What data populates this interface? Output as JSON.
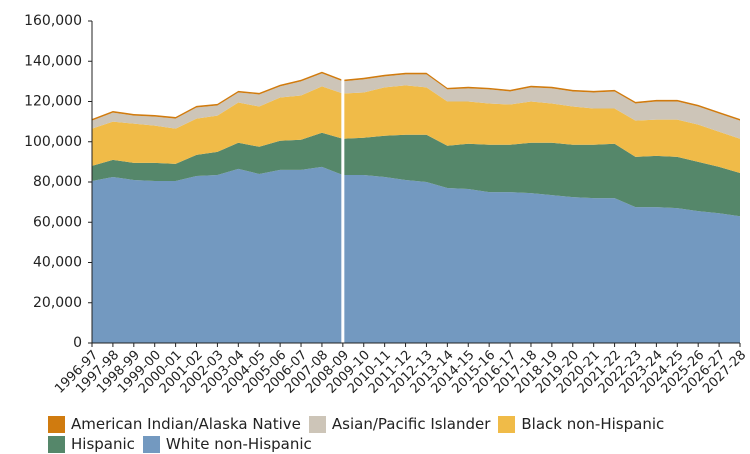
{
  "chart_data": {
    "type": "stacked_area",
    "categories": [
      "1996-97",
      "1997-98",
      "1998-99",
      "1999-00",
      "2000-01",
      "2001-02",
      "2002-03",
      "2003-04",
      "2004-05",
      "2005-06",
      "2006-07",
      "2007-08",
      "2008-09",
      "2009-10",
      "2010-11",
      "2011-12",
      "2012-13",
      "2013-14",
      "2014-15",
      "2015-16",
      "2016-17",
      "2017-18",
      "2018-19",
      "2019-20",
      "2020-21",
      "2021-22",
      "2022-23",
      "2023-24",
      "2024-25",
      "2025-26",
      "2026-27",
      "2027-28"
    ],
    "series": [
      {
        "name": "American Indian/Alaska Native",
        "color": "#d07b0f",
        "values": [
          800,
          800,
          800,
          800,
          800,
          800,
          800,
          800,
          800,
          800,
          800,
          800,
          800,
          800,
          800,
          800,
          800,
          800,
          800,
          800,
          800,
          800,
          800,
          800,
          800,
          800,
          800,
          800,
          800,
          800,
          800,
          800
        ]
      },
      {
        "name": "Asian/Pacific Islander",
        "color": "#cdc5b8",
        "values": [
          4000,
          4500,
          4000,
          4500,
          5000,
          5500,
          5000,
          5000,
          6000,
          5500,
          7000,
          6500,
          6000,
          6500,
          5500,
          5500,
          6500,
          6000,
          6500,
          7000,
          6500,
          7000,
          7500,
          7500,
          8000,
          8500,
          8500,
          9000,
          9000,
          9000,
          9000,
          9000
        ]
      },
      {
        "name": "Black non-Hispanic",
        "color": "#f0bb48",
        "values": [
          18500,
          19000,
          19500,
          18500,
          17500,
          18000,
          18000,
          20000,
          20000,
          21500,
          22000,
          23000,
          22500,
          22500,
          24000,
          24500,
          23500,
          22000,
          21000,
          20500,
          20000,
          20500,
          19500,
          19000,
          18000,
          17500,
          18000,
          18000,
          18500,
          18500,
          17500,
          17000
        ]
      },
      {
        "name": "Hispanic",
        "color": "#55876a",
        "values": [
          7500,
          8500,
          8500,
          9000,
          8500,
          10500,
          11500,
          13000,
          13500,
          14500,
          15000,
          17000,
          18000,
          18500,
          20500,
          22500,
          23500,
          21000,
          22500,
          23500,
          23500,
          25000,
          26000,
          26000,
          26500,
          27000,
          25000,
          25500,
          25500,
          24500,
          23000,
          21500
        ]
      },
      {
        "name": "White non-Hispanic",
        "color": "#7399c0",
        "values": [
          80500,
          82500,
          81000,
          80500,
          80500,
          83000,
          83500,
          86500,
          84000,
          86000,
          86000,
          87500,
          83500,
          83500,
          82500,
          81000,
          80000,
          77000,
          76500,
          75000,
          75000,
          74500,
          73500,
          72500,
          72000,
          72000,
          67500,
          67500,
          67000,
          65500,
          64500,
          63000
        ]
      }
    ],
    "ylim": [
      0,
      160000
    ],
    "yticks": [
      0,
      {
        "value": 20000,
        "label": "20,000"
      },
      {
        "value": 40000,
        "label": "40,000"
      },
      {
        "value": 60000,
        "label": "60,000"
      },
      {
        "value": 80000,
        "label": "80,000"
      },
      {
        "value": 100000,
        "label": "100,000"
      },
      {
        "value": 120000,
        "label": "120,000"
      },
      {
        "value": 140000,
        "label": "140,000"
      },
      {
        "value": 160000,
        "label": "160,000"
      }
    ],
    "grid": false
  }
}
